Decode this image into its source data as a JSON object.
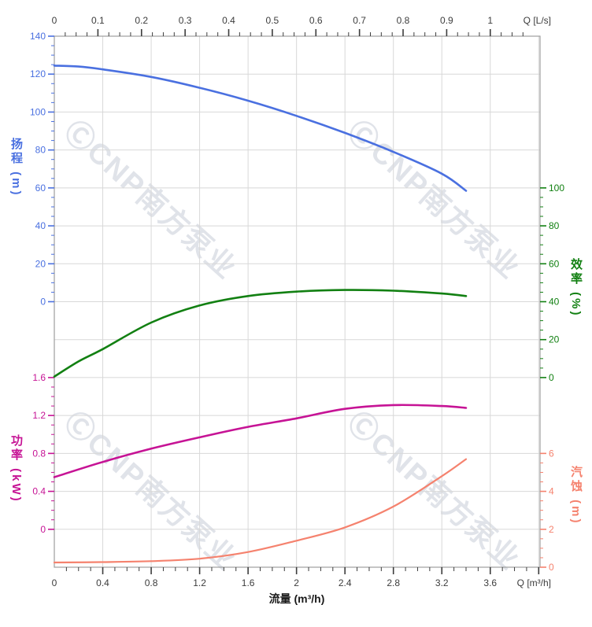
{
  "watermark": {
    "text": "ⒸCNP南方泵业"
  },
  "chart_data": {
    "type": "line",
    "title": "",
    "grid": "on",
    "plot_bg": "#ffffff",
    "grid_color": "#d8d8d8",
    "border_color": "#9e9e9e",
    "x_axis_bottom": {
      "title": "流量 (m³/h)",
      "unit_label": "Q [m³/h]",
      "range": [
        0,
        4.011
      ],
      "major_values": [
        0,
        0.4,
        0.8,
        1.2,
        1.6,
        2,
        2.4,
        2.8,
        3.2,
        3.6
      ],
      "major_labels": [
        "0",
        "0.4",
        "0.8",
        "1.2",
        "1.6",
        "2",
        "2.4",
        "2.8",
        "3.2",
        "3.6"
      ],
      "minor_step": 0.1,
      "minor_max": 4.0,
      "color": "#3c3c3c"
    },
    "x_axis_top": {
      "unit_label": "Q [L/s]",
      "range_lps": [
        0,
        1.114
      ],
      "m3h_per_lps": 3.6,
      "major_values": [
        0,
        0.1,
        0.2,
        0.3,
        0.4,
        0.5,
        0.6,
        0.7,
        0.8,
        0.9,
        1
      ],
      "major_labels": [
        "0",
        "0.1",
        "0.2",
        "0.3",
        "0.4",
        "0.5",
        "0.6",
        "0.7",
        "0.8",
        "0.9",
        "1"
      ],
      "minor_step": 0.025,
      "minor_max": 1.075,
      "color": "#3c3c3c"
    },
    "y_axes": [
      {
        "id": "head",
        "side": "left",
        "title": "扬程 (m)",
        "color": "#4a70e0",
        "row_at_zero": 7,
        "units_per_row": 20,
        "min": 0,
        "max": 140,
        "minor_step": 5,
        "major_values": [
          140,
          120,
          100,
          80,
          60,
          40,
          20,
          0
        ],
        "major_labels": [
          "140",
          "120",
          "100",
          "80",
          "60",
          "40",
          "20",
          "0"
        ]
      },
      {
        "id": "efficiency",
        "side": "right",
        "title": "效率 (%)",
        "color": "#128012",
        "row_at_zero": 9,
        "units_per_row": 20,
        "min": 0,
        "max": 100,
        "minor_step": 5,
        "major_values": [
          100,
          80,
          60,
          40,
          20,
          0
        ],
        "major_labels": [
          "100",
          "80",
          "60",
          "40",
          "20",
          "0"
        ]
      },
      {
        "id": "power",
        "side": "left",
        "title": "功率 (kW)",
        "color": "#c61395",
        "row_at_zero": 13,
        "units_per_row": 0.4,
        "min": 0,
        "max": 1.6,
        "minor_step": 0.1,
        "major_values": [
          1.6,
          1.2,
          0.8,
          0.4,
          0
        ],
        "major_labels": [
          "1.6",
          "1.2",
          "0.8",
          "0.4",
          "0"
        ]
      },
      {
        "id": "npsh",
        "side": "right",
        "title": "汽蚀 (m)",
        "color": "#f5826e",
        "row_at_zero": 14,
        "units_per_row": 2,
        "min": 0,
        "max": 6,
        "minor_step": 0.5,
        "major_values": [
          6,
          4,
          2,
          0
        ],
        "major_labels": [
          "6",
          "4",
          "2",
          "0"
        ]
      }
    ],
    "series": [
      {
        "id": "head-curve",
        "name": "扬程",
        "axis": "head",
        "color": "#4a70e0",
        "width": 2.6,
        "points": [
          [
            0,
            124.5
          ],
          [
            0.2,
            124.0
          ],
          [
            0.4,
            122.5
          ],
          [
            0.8,
            118.5
          ],
          [
            1.2,
            112.8
          ],
          [
            1.6,
            106.0
          ],
          [
            2.0,
            98.0
          ],
          [
            2.4,
            89.0
          ],
          [
            2.8,
            79.0
          ],
          [
            3.2,
            67.5
          ],
          [
            3.4,
            58.5
          ]
        ]
      },
      {
        "id": "efficiency-curve",
        "name": "效率",
        "axis": "efficiency",
        "color": "#128012",
        "width": 2.6,
        "points": [
          [
            0,
            0.5
          ],
          [
            0.2,
            8.5
          ],
          [
            0.4,
            15.0
          ],
          [
            0.8,
            29.0
          ],
          [
            1.2,
            38.0
          ],
          [
            1.6,
            43.0
          ],
          [
            2.0,
            45.3
          ],
          [
            2.4,
            46.2
          ],
          [
            2.8,
            45.8
          ],
          [
            3.2,
            44.3
          ],
          [
            3.4,
            43.0
          ]
        ]
      },
      {
        "id": "power-curve",
        "name": "功率",
        "axis": "power",
        "color": "#c61395",
        "width": 2.6,
        "points": [
          [
            0,
            0.55
          ],
          [
            0.4,
            0.71
          ],
          [
            0.8,
            0.85
          ],
          [
            1.2,
            0.97
          ],
          [
            1.6,
            1.08
          ],
          [
            2.0,
            1.17
          ],
          [
            2.4,
            1.27
          ],
          [
            2.8,
            1.31
          ],
          [
            3.2,
            1.3
          ],
          [
            3.4,
            1.28
          ]
        ]
      },
      {
        "id": "npsh-curve",
        "name": "汽蚀",
        "axis": "npsh",
        "color": "#f5826e",
        "width": 2.2,
        "points": [
          [
            0,
            0.25
          ],
          [
            0.4,
            0.27
          ],
          [
            0.8,
            0.32
          ],
          [
            1.2,
            0.45
          ],
          [
            1.6,
            0.8
          ],
          [
            2.0,
            1.4
          ],
          [
            2.4,
            2.1
          ],
          [
            2.8,
            3.2
          ],
          [
            3.2,
            4.8
          ],
          [
            3.4,
            5.7
          ]
        ]
      }
    ]
  }
}
